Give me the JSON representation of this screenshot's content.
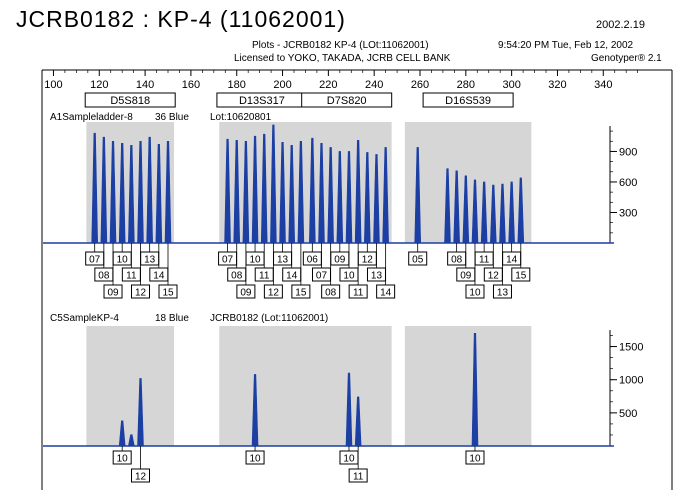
{
  "header": {
    "title": "JCRB0182 : KP-4 (11062001)",
    "date": "2002.2.19",
    "plots_line": "Plots - JCRB0182 KP-4 (LOt:11062001)",
    "license_line": "Licensed to YOKO, TAKADA, JCRB CELL BANK",
    "time_line": "9:54:20 PM Tue, Feb 12, 2002",
    "software": "Genotyper® 2.1"
  },
  "chart_data": {
    "type": "line",
    "line_color": "#1c3fa3",
    "band_color": "#d6d6d6",
    "x_axis": {
      "min": 95,
      "max": 370,
      "ticks": [
        100,
        120,
        140,
        160,
        180,
        200,
        220,
        240,
        260,
        280,
        300,
        320,
        340
      ],
      "labels": [
        "100",
        "120",
        "140",
        "160",
        "180",
        "200",
        "220",
        "240",
        "260",
        "280",
        "300",
        "320",
        "340"
      ]
    },
    "loci": [
      {
        "name": "D5S818",
        "x_from": 117,
        "x_to": 150
      },
      {
        "name": "D13S317",
        "x_from": 175,
        "x_to": 207
      },
      {
        "name": "D7S820",
        "x_from": 211,
        "x_to": 245
      },
      {
        "name": "D16S539",
        "x_from": 256,
        "x_to": 306
      }
    ],
    "panels": [
      {
        "label": "A1Sampleladder-8",
        "dye": "36 Blue",
        "lot": "Lot:10620801",
        "y_ticks": [
          300,
          600,
          900
        ],
        "ylim": [
          0,
          1150
        ],
        "peaks": [
          {
            "x": 118,
            "h": 1080
          },
          {
            "x": 122,
            "h": 1040
          },
          {
            "x": 126,
            "h": 1000
          },
          {
            "x": 130,
            "h": 980
          },
          {
            "x": 134,
            "h": 960
          },
          {
            "x": 138,
            "h": 1000
          },
          {
            "x": 142,
            "h": 1040
          },
          {
            "x": 146,
            "h": 970
          },
          {
            "x": 150,
            "h": 1000
          },
          {
            "x": 176,
            "h": 1020
          },
          {
            "x": 180,
            "h": 1010
          },
          {
            "x": 184,
            "h": 1000
          },
          {
            "x": 188,
            "h": 1050
          },
          {
            "x": 192,
            "h": 1070
          },
          {
            "x": 196,
            "h": 1160
          },
          {
            "x": 200,
            "h": 990
          },
          {
            "x": 204,
            "h": 960
          },
          {
            "x": 208,
            "h": 1000
          },
          {
            "x": 213,
            "h": 1030
          },
          {
            "x": 217,
            "h": 980
          },
          {
            "x": 221,
            "h": 940
          },
          {
            "x": 225,
            "h": 900
          },
          {
            "x": 229,
            "h": 900
          },
          {
            "x": 233,
            "h": 1010
          },
          {
            "x": 237,
            "h": 890
          },
          {
            "x": 241,
            "h": 870
          },
          {
            "x": 245,
            "h": 940
          },
          {
            "x": 259,
            "h": 940
          },
          {
            "x": 272,
            "h": 730
          },
          {
            "x": 276,
            "h": 710
          },
          {
            "x": 280,
            "h": 660
          },
          {
            "x": 284,
            "h": 620
          },
          {
            "x": 288,
            "h": 600
          },
          {
            "x": 292,
            "h": 570
          },
          {
            "x": 296,
            "h": 580
          },
          {
            "x": 300,
            "h": 600
          },
          {
            "x": 304,
            "h": 640
          }
        ],
        "allele_rows": [
          [
            {
              "text": "07",
              "x": 118
            },
            {
              "text": "10",
              "x": 130
            },
            {
              "text": "13",
              "x": 142
            },
            {
              "text": "07",
              "x": 176
            },
            {
              "text": "10",
              "x": 188
            },
            {
              "text": "13",
              "x": 200
            },
            {
              "text": "06",
              "x": 213
            },
            {
              "text": "09",
              "x": 225
            },
            {
              "text": "12",
              "x": 237
            },
            {
              "text": "05",
              "x": 259
            },
            {
              "text": "08",
              "x": 276
            },
            {
              "text": "11",
              "x": 288
            },
            {
              "text": "14",
              "x": 300
            }
          ],
          [
            {
              "text": "08",
              "x": 122
            },
            {
              "text": "11",
              "x": 134
            },
            {
              "text": "14",
              "x": 146
            },
            {
              "text": "08",
              "x": 180
            },
            {
              "text": "11",
              "x": 192
            },
            {
              "text": "14",
              "x": 204
            },
            {
              "text": "07",
              "x": 217
            },
            {
              "text": "10",
              "x": 229
            },
            {
              "text": "13",
              "x": 241
            },
            {
              "text": "09",
              "x": 280
            },
            {
              "text": "12",
              "x": 292
            },
            {
              "text": "15",
              "x": 304
            }
          ],
          [
            {
              "text": "09",
              "x": 126
            },
            {
              "text": "12",
              "x": 138
            },
            {
              "text": "15",
              "x": 150
            },
            {
              "text": "09",
              "x": 184
            },
            {
              "text": "12",
              "x": 196
            },
            {
              "text": "15",
              "x": 208
            },
            {
              "text": "08",
              "x": 221
            },
            {
              "text": "11",
              "x": 233
            },
            {
              "text": "14",
              "x": 245
            },
            {
              "text": "10",
              "x": 284
            },
            {
              "text": "13",
              "x": 296
            }
          ]
        ]
      },
      {
        "label": "C5SampleKP-4",
        "dye": "18 Blue",
        "lot": "JCRB0182 (Lot:11062001)",
        "y_ticks": [
          500,
          1000,
          1500
        ],
        "ylim": [
          0,
          1750
        ],
        "peaks": [
          {
            "x": 130,
            "h": 380
          },
          {
            "x": 134,
            "h": 170
          },
          {
            "x": 138,
            "h": 1020
          },
          {
            "x": 188,
            "h": 1080
          },
          {
            "x": 229,
            "h": 1100
          },
          {
            "x": 233,
            "h": 740
          },
          {
            "x": 284,
            "h": 1700
          }
        ],
        "allele_rows": [
          [
            {
              "text": "10",
              "x": 130
            },
            {
              "text": "10",
              "x": 188
            },
            {
              "text": "10",
              "x": 229
            },
            {
              "text": "10",
              "x": 284
            }
          ],
          [
            {
              "text": "12",
              "x": 138
            },
            {
              "text": "11",
              "x": 233
            }
          ]
        ]
      }
    ]
  }
}
